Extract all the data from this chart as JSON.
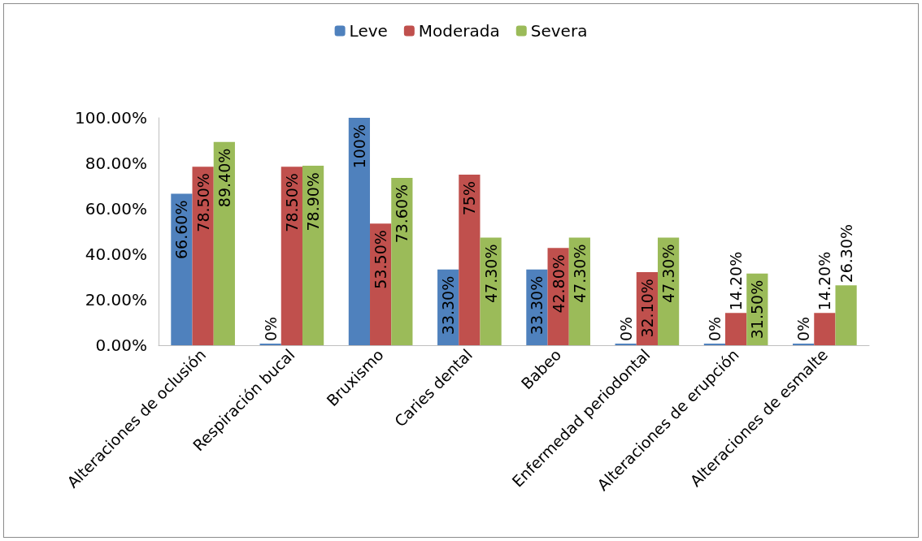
{
  "chart_data": {
    "type": "bar",
    "categories": [
      "Alteraciones de oclusión",
      "Respiración bucal",
      "Bruxismo",
      "Caries dental",
      "Babeo",
      "Enfermedad periodontal",
      "Alteraciones de erupción",
      "Alteraciones de esmalte"
    ],
    "series": [
      {
        "name": "Leve",
        "color": "#4f81bd",
        "values": [
          66.6,
          0,
          100,
          33.3,
          33.3,
          0,
          0,
          0
        ],
        "value_labels": [
          "66.60%",
          "0%",
          "100%",
          "33.30%",
          "33.30%",
          "0%",
          "0%",
          "0%"
        ]
      },
      {
        "name": "Moderada",
        "color": "#c0504d",
        "values": [
          78.5,
          78.5,
          53.5,
          75,
          42.8,
          32.1,
          14.2,
          14.2
        ],
        "value_labels": [
          "78.50%",
          "78.50%",
          "53.50%",
          "75%",
          "42.80%",
          "32.10%",
          "14.20%",
          "14.20%"
        ]
      },
      {
        "name": "Severa",
        "color": "#9bbb59",
        "values": [
          89.4,
          78.9,
          73.6,
          47.3,
          47.3,
          47.3,
          31.5,
          26.3
        ],
        "value_labels": [
          "89.40%",
          "78.90%",
          "73.60%",
          "47.30%",
          "47.30%",
          "47.30%",
          "31.50%",
          "26.30%"
        ]
      }
    ],
    "ylim": [
      0,
      100
    ],
    "yticks": [
      {
        "value": 0,
        "label": "0.00%"
      },
      {
        "value": 20,
        "label": "20.00%"
      },
      {
        "value": 40,
        "label": "40.00%"
      },
      {
        "value": 60,
        "label": "60.00%"
      },
      {
        "value": 80,
        "label": "80.00%"
      },
      {
        "value": 100,
        "label": "100.00%"
      }
    ],
    "grid": false,
    "legend": "top"
  }
}
